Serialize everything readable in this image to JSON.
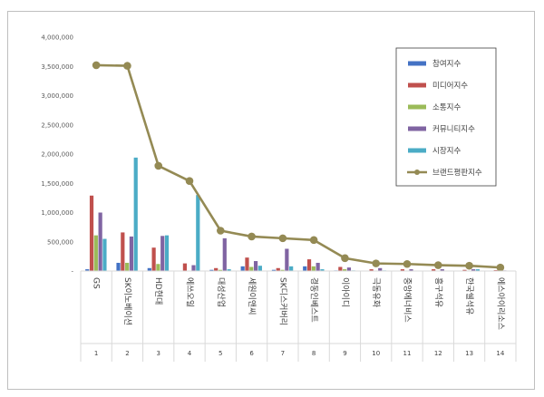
{
  "chart_data": {
    "type": "bar",
    "title": "",
    "xlabel": "",
    "ylabel": "",
    "ylim": [
      0,
      4000000
    ],
    "yticks": [
      0,
      500000,
      1000000,
      1500000,
      2000000,
      2500000,
      3000000,
      3500000,
      4000000
    ],
    "ytick_labels": [
      "-",
      "500,000",
      "1,000,000",
      "1,500,000",
      "2,000,000",
      "2,500,000",
      "3,000,000",
      "3,500,000",
      "4,000,000"
    ],
    "grid": false,
    "legend_position": "right",
    "categories": [
      "GS",
      "SK이노베이션",
      "HD현대",
      "에쓰오일",
      "대성산업",
      "세원이앤씨",
      "SK디스커버리",
      "경동인베스트",
      "이아이디",
      "극동유화",
      "중앙에너비스",
      "흥구석유",
      "한국쉘석유",
      "에스아이리소스"
    ],
    "category_numbers": [
      "1",
      "2",
      "3",
      "4",
      "5",
      "6",
      "7",
      "8",
      "9",
      "10",
      "11",
      "12",
      "13",
      "14"
    ],
    "series": [
      {
        "name": "참여지수",
        "kind": "bar",
        "color": "#4472c4",
        "values": [
          30000,
          140000,
          50000,
          5000,
          20000,
          80000,
          20000,
          80000,
          10000,
          5000,
          5000,
          5000,
          5000,
          5000
        ]
      },
      {
        "name": "미디어지수",
        "kind": "bar",
        "color": "#c0504d",
        "values": [
          1290000,
          660000,
          400000,
          130000,
          50000,
          230000,
          50000,
          200000,
          70000,
          30000,
          30000,
          30000,
          20000,
          15000
        ]
      },
      {
        "name": "소통지수",
        "kind": "bar",
        "color": "#9bbb59",
        "values": [
          610000,
          140000,
          120000,
          5000,
          20000,
          70000,
          20000,
          80000,
          30000,
          5000,
          5000,
          5000,
          5000,
          5000
        ]
      },
      {
        "name": "커뮤니티지수",
        "kind": "bar",
        "color": "#8064a2",
        "values": [
          1000000,
          590000,
          600000,
          100000,
          560000,
          170000,
          380000,
          140000,
          60000,
          50000,
          30000,
          30000,
          30000,
          10000
        ]
      },
      {
        "name": "시장지수",
        "kind": "bar",
        "color": "#4bacc6",
        "values": [
          550000,
          1940000,
          610000,
          1300000,
          30000,
          90000,
          80000,
          30000,
          10000,
          10000,
          5000,
          5000,
          30000,
          5000
        ]
      },
      {
        "name": "브랜드평판지수",
        "kind": "line",
        "color": "#948a54",
        "values": [
          3520000,
          3510000,
          1800000,
          1540000,
          690000,
          590000,
          560000,
          530000,
          220000,
          130000,
          120000,
          100000,
          90000,
          60000
        ]
      }
    ]
  }
}
